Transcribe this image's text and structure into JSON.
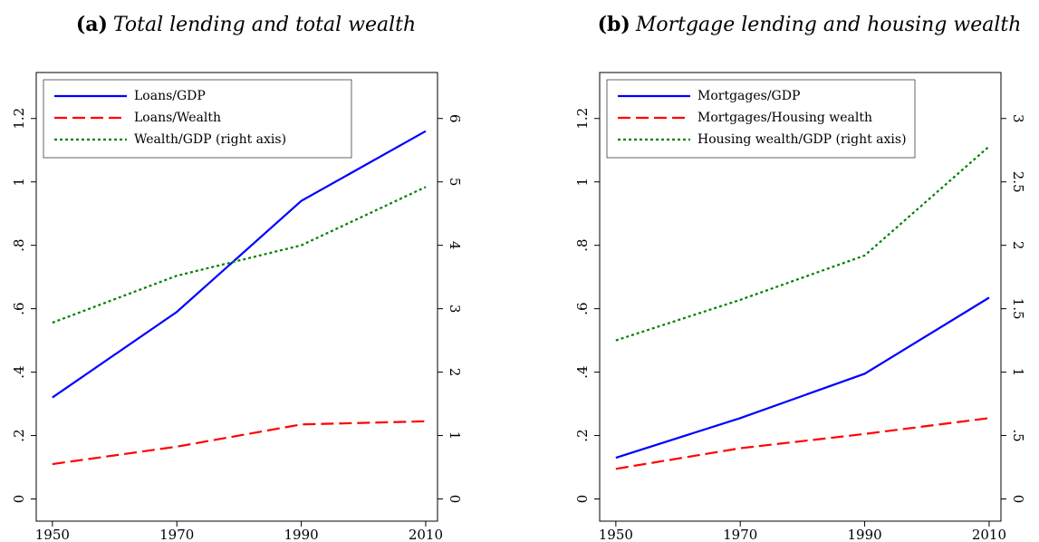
{
  "chart_data": [
    {
      "type": "line",
      "label": "(a)",
      "title": "Total lending and total wealth",
      "x": [
        1950,
        1970,
        1990,
        2010
      ],
      "xlim": [
        1947.4,
        2011.9
      ],
      "xticks": [
        1950,
        1970,
        1990,
        2010
      ],
      "ylim": [
        -0.07,
        1.345
      ],
      "yticks": [
        0,
        {
          "value": 0.2,
          "label": ".2"
        },
        {
          "value": 0.4,
          "label": ".4"
        },
        {
          "value": 0.6,
          "label": ".6"
        },
        {
          "value": 0.8,
          "label": ".8"
        },
        1,
        1.2
      ],
      "y2lim": [
        -0.35,
        6.725
      ],
      "y2ticks": [
        0,
        1,
        2,
        3,
        4,
        5,
        6
      ],
      "series": [
        {
          "name": "Loans/GDP",
          "color": "#0000ff",
          "style": "solid",
          "values": [
            0.32,
            0.59,
            0.94,
            1.16
          ]
        },
        {
          "name": "Loans/Wealth",
          "color": "#ff0000",
          "style": "dashed",
          "values": [
            0.11,
            0.165,
            0.235,
            0.245
          ]
        },
        {
          "name": "Wealth/GDP (right axis)",
          "color": "#008000",
          "style": "dotted",
          "axis": "y2",
          "values": [
            2.78,
            3.52,
            4.0,
            4.92
          ]
        }
      ]
    },
    {
      "type": "line",
      "label": "(b)",
      "title": "Mortgage lending and housing wealth",
      "x": [
        1950,
        1970,
        1990,
        2010
      ],
      "xlim": [
        1947.4,
        2011.9
      ],
      "xticks": [
        1950,
        1970,
        1990,
        2010
      ],
      "ylim": [
        -0.07,
        1.345
      ],
      "yticks": [
        0,
        {
          "value": 0.2,
          "label": ".2"
        },
        {
          "value": 0.4,
          "label": ".4"
        },
        {
          "value": 0.6,
          "label": ".6"
        },
        {
          "value": 0.8,
          "label": ".8"
        },
        1,
        1.2
      ],
      "y2lim": [
        -0.175,
        3.3625
      ],
      "y2ticks": [
        0,
        {
          "value": 0.5,
          "label": ".5"
        },
        1,
        1.5,
        2,
        2.5,
        3
      ],
      "series": [
        {
          "name": "Mortgages/GDP",
          "color": "#0000ff",
          "style": "solid",
          "values": [
            0.13,
            0.255,
            0.395,
            0.635
          ]
        },
        {
          "name": "Mortgages/Housing wealth",
          "color": "#ff0000",
          "style": "dashed",
          "values": [
            0.095,
            0.16,
            0.205,
            0.255
          ]
        },
        {
          "name": "Housing wealth/GDP (right axis)",
          "color": "#008000",
          "style": "dotted",
          "axis": "y2",
          "values": [
            1.25,
            1.57,
            1.92,
            2.78
          ]
        }
      ]
    }
  ]
}
